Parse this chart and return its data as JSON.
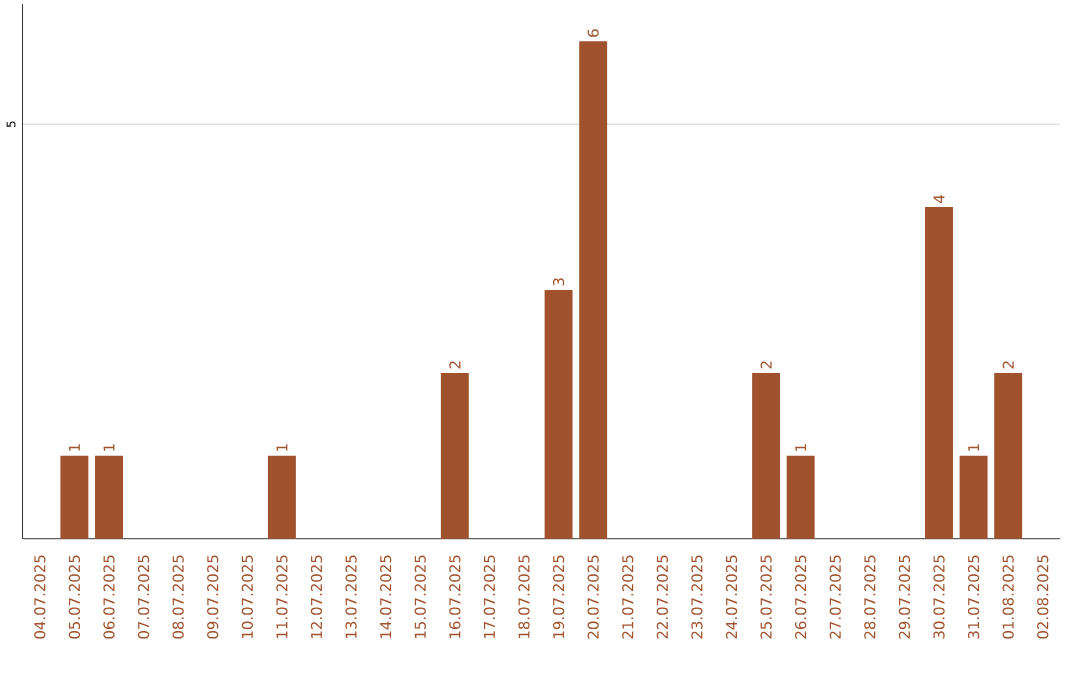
{
  "chart_data": {
    "type": "bar",
    "color": "#a0522d",
    "categories": [
      "04.07.2025",
      "05.07.2025",
      "06.07.2025",
      "07.07.2025",
      "08.07.2025",
      "09.07.2025",
      "10.07.2025",
      "11.07.2025",
      "12.07.2025",
      "13.07.2025",
      "14.07.2025",
      "15.07.2025",
      "16.07.2025",
      "17.07.2025",
      "18.07.2025",
      "19.07.2025",
      "20.07.2025",
      "21.07.2025",
      "22.07.2025",
      "23.07.2025",
      "24.07.2025",
      "25.07.2025",
      "26.07.2025",
      "27.07.2025",
      "28.07.2025",
      "29.07.2025",
      "30.07.2025",
      "31.07.2025",
      "01.08.2025",
      "02.08.2025"
    ],
    "values": [
      0,
      1,
      1,
      0,
      0,
      0,
      0,
      1,
      0,
      0,
      0,
      0,
      2,
      0,
      0,
      3,
      6,
      0,
      0,
      0,
      0,
      2,
      1,
      0,
      0,
      0,
      4,
      1,
      2,
      0
    ],
    "value_labels": [
      null,
      "1",
      "1",
      null,
      null,
      null,
      null,
      "1",
      null,
      null,
      null,
      null,
      "2",
      null,
      null,
      "3",
      "6",
      null,
      null,
      null,
      null,
      "2",
      "1",
      null,
      null,
      null,
      "4",
      "1",
      "2",
      null
    ],
    "ylim": [
      0,
      6.45
    ],
    "yticks": [
      5
    ],
    "grid": "y"
  }
}
